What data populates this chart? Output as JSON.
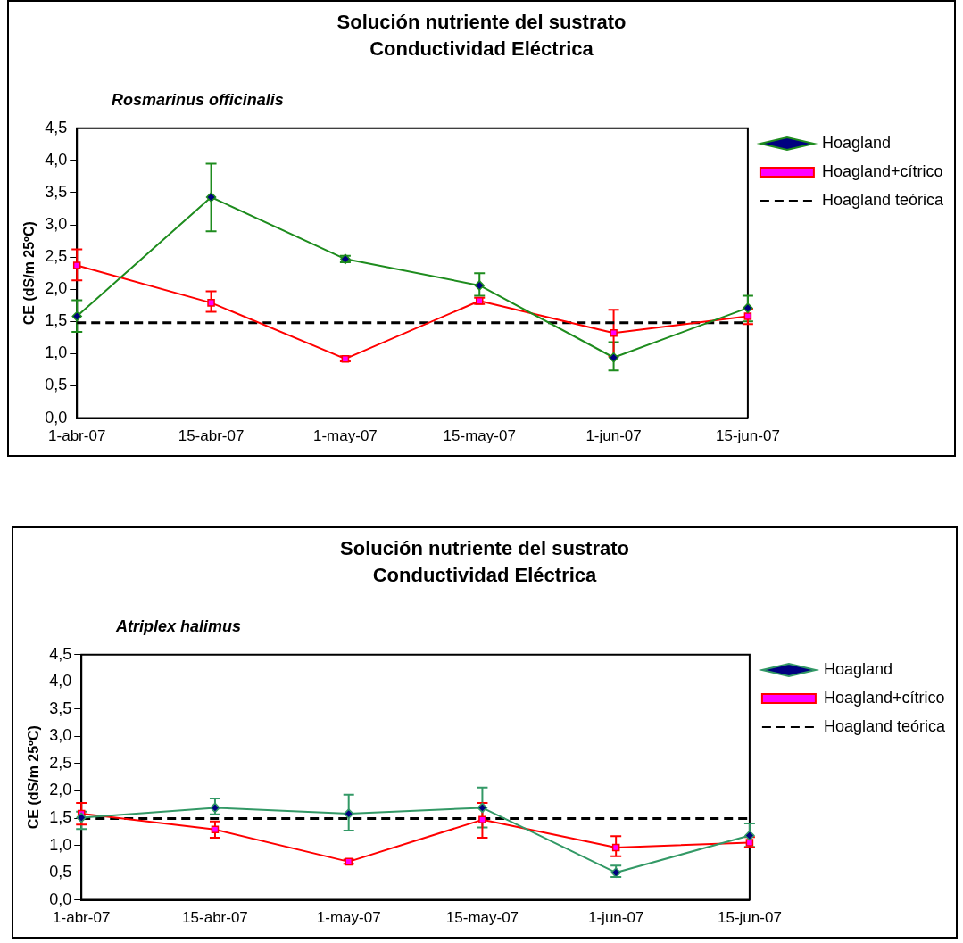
{
  "chart_data": [
    {
      "type": "line",
      "title": "Solución nutriente del sustrato\nConductividad Eléctrica",
      "subtitle": "Rosmarinus officinalis",
      "ylabel": "CE (dS/m 25ºC)",
      "categories": [
        "1-abr-07",
        "15-abr-07",
        "1-may-07",
        "15-may-07",
        "1-jun-07",
        "15-jun-07"
      ],
      "ylim": [
        0,
        4.5
      ],
      "yticks": [
        {
          "value": 0,
          "label": "0,0"
        },
        {
          "value": 0.5,
          "label": "0,5"
        },
        {
          "value": 1,
          "label": "1,0"
        },
        {
          "value": 1.5,
          "label": "1,5"
        },
        {
          "value": 2,
          "label": "2,0"
        },
        {
          "value": 2.5,
          "label": "2,5"
        },
        {
          "value": 3,
          "label": "3,0"
        },
        {
          "value": 3.5,
          "label": "3,5"
        },
        {
          "value": 4,
          "label": "4,0"
        },
        {
          "value": 4.5,
          "label": "4,5"
        }
      ],
      "legend": "right",
      "series": [
        {
          "name": "Hoagland",
          "color": "#1e8c1e",
          "marker": "diamond",
          "values": [
            1.58,
            3.43,
            2.47,
            2.06,
            0.94,
            1.71
          ],
          "errors": [
            [
              1.34,
              1.83
            ],
            [
              2.9,
              3.95
            ],
            [
              2.42,
              2.52
            ],
            [
              1.9,
              2.25
            ],
            [
              0.74,
              1.18
            ],
            [
              1.5,
              1.9
            ]
          ]
        },
        {
          "name": "Hoagland+cítrico",
          "color": "#ff0000",
          "marker": "square",
          "values": [
            2.37,
            1.79,
            0.92,
            1.82,
            1.32,
            1.58
          ],
          "errors": [
            [
              2.14,
              2.62
            ],
            [
              1.65,
              1.97
            ],
            [
              0.88,
              0.96
            ],
            [
              1.77,
              1.87
            ],
            [
              0.96,
              1.68
            ],
            [
              1.46,
              1.7
            ]
          ]
        },
        {
          "name": "Hoagland teórica",
          "color": "#000000",
          "marker": "none",
          "line_style": "dashed",
          "values": [
            1.48,
            1.48,
            1.48,
            1.48,
            1.48,
            1.48
          ]
        }
      ]
    },
    {
      "type": "line",
      "title": "Solución nutriente del sustrato\nConductividad Eléctrica",
      "subtitle": "Atriplex halimus",
      "ylabel": "CE (dS/m 25ºC)",
      "categories": [
        "1-abr-07",
        "15-abr-07",
        "1-may-07",
        "15-may-07",
        "1-jun-07",
        "15-jun-07"
      ],
      "ylim": [
        0,
        4.5
      ],
      "yticks": [
        {
          "value": 0,
          "label": "0,0"
        },
        {
          "value": 0.5,
          "label": "0,5"
        },
        {
          "value": 1,
          "label": "1,0"
        },
        {
          "value": 1.5,
          "label": "1,5"
        },
        {
          "value": 2,
          "label": "2,0"
        },
        {
          "value": 2.5,
          "label": "2,5"
        },
        {
          "value": 3,
          "label": "3,0"
        },
        {
          "value": 3.5,
          "label": "3,5"
        },
        {
          "value": 4,
          "label": "4,0"
        },
        {
          "value": 4.5,
          "label": "4,5"
        }
      ],
      "legend": "right",
      "series": [
        {
          "name": "Hoagland",
          "color": "#339966",
          "marker": "diamond",
          "values": [
            1.51,
            1.69,
            1.58,
            1.69,
            0.5,
            1.18
          ],
          "errors": [
            [
              1.3,
              1.62
            ],
            [
              1.57,
              1.86
            ],
            [
              1.27,
              1.93
            ],
            [
              1.33,
              2.06
            ],
            [
              0.42,
              0.63
            ],
            [
              0.97,
              1.4
            ]
          ]
        },
        {
          "name": "Hoagland+cítrico",
          "color": "#ff0000",
          "marker": "square",
          "values": [
            1.58,
            1.29,
            0.7,
            1.47,
            0.96,
            1.05
          ],
          "errors": [
            [
              1.38,
              1.78
            ],
            [
              1.14,
              1.44
            ],
            [
              0.66,
              0.74
            ],
            [
              1.14,
              1.78
            ],
            [
              0.8,
              1.17
            ],
            [
              0.96,
              1.15
            ]
          ]
        },
        {
          "name": "Hoagland teórica",
          "color": "#000000",
          "marker": "none",
          "line_style": "dashed",
          "values": [
            1.49,
            1.49,
            1.49,
            1.49,
            1.49,
            1.49
          ]
        }
      ]
    }
  ]
}
